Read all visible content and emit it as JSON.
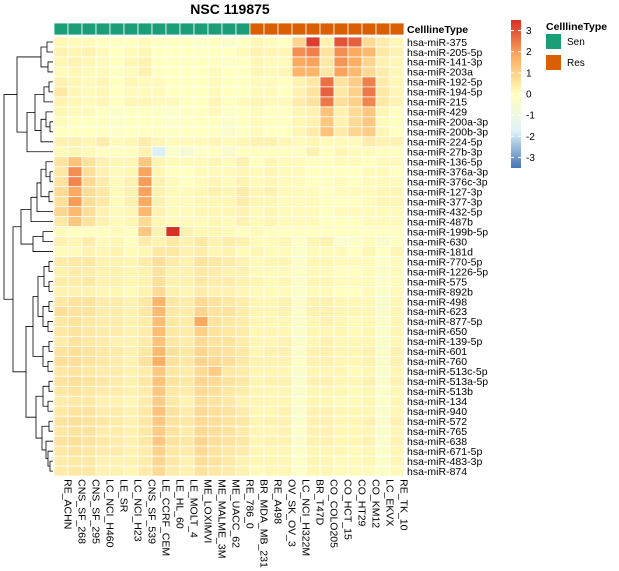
{
  "chart_data": {
    "type": "heatmap",
    "title": "NSC 119875",
    "annotation_label": "CelllineType",
    "annotation_legend": {
      "title": "CelllineType",
      "items": [
        {
          "label": "Sen",
          "color": "#1b9e77"
        },
        {
          "label": "Res",
          "color": "#d95f02"
        }
      ]
    },
    "color_scale": {
      "ticks": [
        3,
        2,
        1,
        0,
        -1,
        -2,
        -3
      ],
      "min": -3.5,
      "max": 3.5,
      "colors": [
        "#4575b4",
        "#e0f3f8",
        "#ffffbf",
        "#fdae61",
        "#d73027"
      ]
    },
    "columns": [
      {
        "label": "RE_ACHN",
        "group": "Sen"
      },
      {
        "label": "CNS_SF_268",
        "group": "Sen"
      },
      {
        "label": "CNS_SF_295",
        "group": "Sen"
      },
      {
        "label": "LC_NCI_H460",
        "group": "Sen"
      },
      {
        "label": "LE_SR",
        "group": "Sen"
      },
      {
        "label": "LC_NCI_H23",
        "group": "Sen"
      },
      {
        "label": "CNS_SF_539",
        "group": "Sen"
      },
      {
        "label": "LE_CCRF_CEM",
        "group": "Sen"
      },
      {
        "label": "LE_HL_60",
        "group": "Sen"
      },
      {
        "label": "LE_MOLT_4",
        "group": "Sen"
      },
      {
        "label": "ME_LOXIMVI",
        "group": "Sen"
      },
      {
        "label": "ME_MALME_3M",
        "group": "Sen"
      },
      {
        "label": "ME_UACC_62",
        "group": "Sen"
      },
      {
        "label": "RE_786_0",
        "group": "Sen"
      },
      {
        "label": "BR_MDA_MB_231",
        "group": "Res"
      },
      {
        "label": "RE_A498",
        "group": "Res"
      },
      {
        "label": "OV_SK_OV_3",
        "group": "Res"
      },
      {
        "label": "LC_NCI_H322M",
        "group": "Res"
      },
      {
        "label": "BR_T47D",
        "group": "Res"
      },
      {
        "label": "CO_COLO205",
        "group": "Res"
      },
      {
        "label": "CO_HCT_15",
        "group": "Res"
      },
      {
        "label": "CO_HT29",
        "group": "Res"
      },
      {
        "label": "CO_KM12",
        "group": "Res"
      },
      {
        "label": "LC_EKVX",
        "group": "Res"
      },
      {
        "label": "RE_TK_10",
        "group": "Res"
      }
    ],
    "rows": [
      "hsa-miR-375",
      "hsa-miR-205-5p",
      "hsa-miR-141-3p",
      "hsa-miR-203a",
      "hsa-miR-192-5p",
      "hsa-miR-194-5p",
      "hsa-miR-215",
      "hsa-miR-429",
      "hsa-miR-200a-3p",
      "hsa-miR-200b-3p",
      "hsa-miR-224-5p",
      "hsa-miR-27b-3p",
      "hsa-miR-136-5p",
      "hsa-miR-376a-3p",
      "hsa-miR-376c-3p",
      "hsa-miR-127-3p",
      "hsa-miR-377-3p",
      "hsa-miR-432-5p",
      "hsa-miR-487b",
      "hsa-miR-199b-5p",
      "hsa-miR-630",
      "hsa-miR-181d",
      "hsa-miR-770-5p",
      "hsa-miR-1226-5p",
      "hsa-miR-575",
      "hsa-miR-892b",
      "hsa-miR-498",
      "hsa-miR-623",
      "hsa-miR-877-5p",
      "hsa-miR-650",
      "hsa-miR-139-5p",
      "hsa-miR-601",
      "hsa-miR-760",
      "hsa-miR-513c-5p",
      "hsa-miR-513a-5p",
      "hsa-miR-513b",
      "hsa-miR-134",
      "hsa-miR-940",
      "hsa-miR-572",
      "hsa-miR-765",
      "hsa-miR-638",
      "hsa-miR-671-5p",
      "hsa-miR-483-3p",
      "hsa-miR-874"
    ],
    "values": [
      [
        0.2,
        0.1,
        0.1,
        0,
        -0.1,
        0,
        0.1,
        -0.1,
        0,
        0,
        -0.2,
        0,
        -0.3,
        0,
        0.2,
        0.1,
        0,
        0.9,
        3.3,
        0.3,
        3,
        2.8,
        0.8,
        0.4,
        0.2
      ],
      [
        0.3,
        0.2,
        0.3,
        0.1,
        0,
        0.1,
        0.2,
        0,
        0,
        0,
        -0.1,
        0,
        0,
        0.1,
        0.3,
        0.2,
        0.2,
        2.2,
        2.4,
        0.6,
        2.2,
        1.8,
        1.5,
        0.5,
        0.3
      ],
      [
        0.2,
        0.3,
        0.2,
        0.1,
        0,
        0.2,
        0.3,
        0,
        0,
        -0.1,
        0,
        0,
        -0.2,
        0,
        0.2,
        0.1,
        0.1,
        1.8,
        1.9,
        0.5,
        2.1,
        1.7,
        0.9,
        0.3,
        0.2
      ],
      [
        0.1,
        0.2,
        0.1,
        0.1,
        -0.1,
        0.1,
        0.3,
        0,
        0,
        0,
        0,
        0.1,
        0,
        0,
        0.2,
        0.1,
        0.2,
        1.6,
        1.6,
        0.5,
        1.9,
        1.5,
        0.8,
        0.4,
        0.2
      ],
      [
        0.3,
        0.2,
        0.1,
        0.2,
        0,
        0.2,
        0.1,
        0.1,
        0,
        0,
        0,
        0.1,
        0,
        0,
        0.1,
        0.1,
        0,
        0.3,
        0.5,
        2.6,
        0.6,
        1.1,
        2.4,
        0.4,
        0.2
      ],
      [
        0.5,
        0.2,
        0.1,
        0.2,
        0,
        0.1,
        0.1,
        0.1,
        0,
        0,
        0,
        0.1,
        0,
        0,
        0.1,
        0.1,
        0,
        0.3,
        0.6,
        2.8,
        0.5,
        1,
        2.5,
        0.5,
        0.2
      ],
      [
        0.3,
        0.2,
        0.1,
        0.2,
        0,
        0.2,
        0.2,
        0.1,
        0.1,
        0,
        0,
        0.2,
        0,
        0.1,
        0.2,
        0.1,
        0.1,
        0.4,
        0.6,
        2.5,
        0.7,
        1,
        2.3,
        0.5,
        0.3
      ],
      [
        0.2,
        0.1,
        0.1,
        0,
        -0.2,
        0,
        0,
        -0.1,
        -0.2,
        -0.1,
        0,
        0.1,
        -0.2,
        0,
        0.1,
        0,
        -0.1,
        0.2,
        0.3,
        1.3,
        0.3,
        0.8,
        1.2,
        0.2,
        0
      ],
      [
        0.1,
        0,
        0,
        0,
        -0.2,
        0,
        0,
        -0.1,
        -0.2,
        -0.1,
        0,
        0,
        -0.3,
        0,
        0.1,
        0,
        -0.1,
        0.2,
        0.3,
        1.2,
        0.3,
        0.8,
        1.2,
        0.1,
        0
      ],
      [
        0,
        0,
        0,
        0,
        -0.2,
        0,
        0,
        -0.1,
        -0.1,
        0,
        0,
        0,
        -0.3,
        -0.1,
        0.1,
        0,
        0,
        0.2,
        0.4,
        1.3,
        0.4,
        0.9,
        1.1,
        0.2,
        0
      ],
      [
        0.3,
        0.3,
        0.2,
        0.4,
        0.1,
        0.2,
        0.4,
        0.2,
        0.1,
        0.1,
        0.1,
        0.2,
        0.1,
        0.2,
        0.3,
        0.3,
        0.2,
        0.1,
        0.2,
        0.1,
        0.1,
        0.1,
        0.4,
        0.3,
        0.3
      ],
      [
        0.1,
        0.2,
        0.1,
        0,
        -0.1,
        0,
        0.3,
        -1.8,
        -0.3,
        -0.6,
        -0.2,
        0,
        -0.4,
        0,
        0,
        0,
        0,
        -0.1,
        0.3,
        0,
        0.2,
        0.1,
        0.1,
        0,
        0
      ],
      [
        0.6,
        1.3,
        0.6,
        0.3,
        0.2,
        0.2,
        1.2,
        0.2,
        0.1,
        0.1,
        0.1,
        0.2,
        0.1,
        0.3,
        0,
        0.2,
        0.1,
        0.1,
        0,
        0,
        0.1,
        0.1,
        0,
        0.1,
        0.1
      ],
      [
        0.5,
        2.2,
        0.7,
        0.3,
        0.1,
        0.2,
        1.9,
        0.2,
        0,
        0,
        0.1,
        0.1,
        0.1,
        0.2,
        0.1,
        0.2,
        0.1,
        0.1,
        0,
        0,
        0,
        0,
        0.1,
        0.1,
        0
      ],
      [
        0.6,
        2.3,
        0.8,
        0.4,
        0.1,
        0.3,
        2,
        0.3,
        0.1,
        0,
        0.1,
        0.2,
        0.1,
        0.3,
        0.1,
        0.2,
        0.1,
        0.1,
        0,
        0,
        0.1,
        0,
        0.1,
        0.1,
        0.1
      ],
      [
        0.8,
        1.8,
        0.7,
        0.5,
        0.1,
        0.3,
        1.9,
        0.3,
        0.1,
        0.1,
        0.2,
        0.3,
        0.2,
        0.4,
        0.2,
        0.3,
        0.1,
        0.1,
        0.1,
        0,
        0.1,
        0.1,
        0.1,
        0.2,
        0.2
      ],
      [
        0.7,
        2,
        0.7,
        0.5,
        0.1,
        0.3,
        1.8,
        0.3,
        0.1,
        0.1,
        0.2,
        0.2,
        0.2,
        0.4,
        0.2,
        0.2,
        0.1,
        0.1,
        0.1,
        0,
        0,
        0,
        0.1,
        0.2,
        0.2
      ],
      [
        0.9,
        1.5,
        0.7,
        0.3,
        0.1,
        0.2,
        1.5,
        0.3,
        0.1,
        0.1,
        0.2,
        0.2,
        0.2,
        0.3,
        0.1,
        0.2,
        0.1,
        0.1,
        0.1,
        0,
        0.1,
        0.1,
        0.1,
        0.1,
        0.1
      ],
      [
        0.5,
        1.2,
        0.6,
        0.3,
        0.1,
        0.2,
        0.8,
        0.2,
        0.1,
        0.1,
        0.1,
        0.2,
        0.1,
        0.3,
        0.1,
        0.2,
        0.1,
        0.1,
        0.1,
        0,
        0,
        0,
        0.1,
        0.1,
        0.1
      ],
      [
        0.1,
        0,
        0,
        0,
        0.1,
        0,
        1.2,
        0.3,
        3.5,
        0.3,
        0.2,
        0.2,
        0.1,
        0,
        0.1,
        0,
        0,
        0,
        0,
        0,
        0,
        0,
        0,
        0,
        0
      ],
      [
        0.3,
        0.2,
        0.4,
        0.1,
        0.2,
        0,
        0.4,
        0.3,
        0.5,
        0.3,
        0.5,
        0.3,
        0.4,
        0.3,
        0.1,
        0.1,
        0.2,
        -0.2,
        0.2,
        0.3,
        -0.3,
        -0.2,
        0.1,
        -0.4,
        0
      ],
      [
        0.1,
        0.1,
        0.3,
        0.2,
        0.3,
        0.1,
        0.2,
        0.5,
        0.5,
        0.3,
        0.4,
        0.2,
        0.3,
        0.1,
        0.2,
        0.1,
        0.1,
        -0.2,
        0.1,
        0.1,
        0.1,
        0,
        0.2,
        0,
        0.2
      ],
      [
        0.4,
        0.5,
        0.5,
        0.3,
        0.3,
        0.2,
        0.4,
        0.7,
        0.4,
        0.3,
        0.6,
        0.5,
        0.4,
        0.3,
        0.1,
        0.2,
        0.2,
        -0.3,
        0.2,
        0.2,
        0.1,
        0.1,
        0.1,
        -0.2,
        0.1
      ],
      [
        0.3,
        0.4,
        0.4,
        0.3,
        0.3,
        0.2,
        0.3,
        0.6,
        0.3,
        0.3,
        0.5,
        0.4,
        0.3,
        0.3,
        0.1,
        0.1,
        0.1,
        -0.2,
        0.1,
        0.1,
        0,
        0,
        0.1,
        -0.3,
        0.1
      ],
      [
        0.4,
        0.4,
        0.5,
        0.3,
        0.3,
        0.2,
        0.3,
        0.7,
        0.3,
        0.3,
        0.5,
        0.4,
        0.4,
        0.3,
        0.2,
        0.1,
        0.2,
        -0.3,
        0.2,
        0.2,
        0.1,
        0.1,
        0.1,
        -0.3,
        0.1
      ],
      [
        0.3,
        0.3,
        0.3,
        0.2,
        0.2,
        0.1,
        0.3,
        0.8,
        0.3,
        0.2,
        0.4,
        0.3,
        0.3,
        0.2,
        0.1,
        0.1,
        0.1,
        -0.2,
        0.1,
        0.1,
        0,
        0,
        0.1,
        -0.2,
        0.1
      ],
      [
        0.5,
        0.6,
        0.6,
        0.4,
        0.4,
        0.3,
        0.5,
        1.6,
        0.5,
        0.4,
        0.8,
        0.6,
        0.5,
        0.4,
        0.2,
        0.2,
        0.3,
        -0.3,
        0.3,
        0.3,
        0.2,
        0.2,
        0.2,
        -0.4,
        0.2
      ],
      [
        0.7,
        0.6,
        0.6,
        0.4,
        0.4,
        0.3,
        0.5,
        1.5,
        0.5,
        0.4,
        0.9,
        0.6,
        0.6,
        0.4,
        0.2,
        0.2,
        0.3,
        -0.3,
        0.3,
        0.3,
        0.2,
        0.2,
        0.2,
        -0.4,
        0.2
      ],
      [
        0.5,
        0.6,
        0.5,
        0.4,
        0.4,
        0.3,
        0.4,
        1.4,
        0.5,
        0.4,
        1.8,
        0.6,
        0.5,
        0.4,
        0.2,
        0.2,
        0.2,
        -0.3,
        0.2,
        0.3,
        0.2,
        0.1,
        0.2,
        -0.3,
        0.2
      ],
      [
        0.5,
        0.6,
        0.5,
        0.4,
        0.4,
        0.3,
        0.4,
        1.4,
        0.5,
        0.4,
        1,
        0.6,
        0.5,
        0.4,
        0.2,
        0.2,
        0.2,
        -0.3,
        0.2,
        0.2,
        0.2,
        0.1,
        0.2,
        -0.3,
        0.2
      ],
      [
        0.4,
        0.6,
        0.5,
        0.4,
        0.3,
        0.3,
        0.4,
        1.3,
        0.5,
        0.4,
        0.8,
        0.6,
        0.6,
        0.4,
        0.2,
        0.2,
        0.3,
        -0.3,
        0.2,
        0.3,
        0.2,
        0.2,
        0.2,
        -0.3,
        0.2
      ],
      [
        0.6,
        0.7,
        0.6,
        0.5,
        0.4,
        0.3,
        0.5,
        1.5,
        0.6,
        0.5,
        0.9,
        0.7,
        0.6,
        0.5,
        0.2,
        0.3,
        0.3,
        -0.3,
        0.3,
        0.3,
        0.2,
        0.2,
        0.3,
        -0.3,
        0.3
      ],
      [
        0.7,
        0.7,
        0.6,
        0.5,
        0.4,
        0.3,
        0.6,
        1.7,
        0.6,
        0.5,
        0.9,
        0.8,
        0.7,
        0.5,
        0.3,
        0.3,
        0.3,
        -0.2,
        0.3,
        0.3,
        0.2,
        0.2,
        0.3,
        -0.3,
        0.3
      ],
      [
        0.5,
        0.6,
        0.5,
        0.4,
        0.4,
        0.3,
        0.4,
        1.2,
        0.5,
        0.4,
        0.8,
        1.1,
        0.5,
        0.4,
        0.2,
        0.2,
        0.2,
        -0.3,
        0.2,
        0.2,
        0.2,
        0.1,
        0.2,
        -0.3,
        0.2
      ],
      [
        0.6,
        0.7,
        0.6,
        0.5,
        0.4,
        0.3,
        0.5,
        1.3,
        0.6,
        0.5,
        0.9,
        0.8,
        0.6,
        0.5,
        0.2,
        0.3,
        0.3,
        -0.3,
        0.3,
        0.3,
        0.2,
        0.2,
        0.3,
        -0.3,
        0.3
      ],
      [
        0.5,
        0.6,
        0.5,
        0.4,
        0.4,
        0.3,
        0.4,
        1.2,
        0.5,
        0.4,
        0.8,
        0.7,
        0.5,
        0.4,
        0.2,
        0.2,
        0.2,
        -0.3,
        0.2,
        0.2,
        0.2,
        0.1,
        0.2,
        -0.3,
        0.2
      ],
      [
        0.4,
        0.5,
        0.5,
        0.3,
        0.3,
        0.2,
        0.4,
        1.1,
        0.5,
        0.3,
        0.7,
        0.6,
        0.5,
        0.3,
        0.2,
        0.2,
        0.2,
        -0.2,
        0.2,
        0.2,
        0.1,
        0.1,
        0.2,
        -0.2,
        0.2
      ],
      [
        0.5,
        0.6,
        0.6,
        0.4,
        0.4,
        0.3,
        0.5,
        1.3,
        0.6,
        0.4,
        0.8,
        0.7,
        0.6,
        0.4,
        0.2,
        0.2,
        0.3,
        -0.3,
        0.3,
        0.3,
        0.2,
        0.2,
        0.2,
        -0.3,
        0.2
      ],
      [
        0.6,
        0.7,
        0.6,
        0.5,
        0.4,
        0.3,
        0.5,
        1.2,
        0.6,
        0.5,
        0.8,
        0.7,
        0.6,
        0.5,
        0.2,
        0.3,
        0.3,
        -0.3,
        0.3,
        0.3,
        0.2,
        0.2,
        0.3,
        -0.3,
        0.3
      ],
      [
        0.5,
        0.6,
        0.6,
        0.4,
        0.4,
        0.3,
        0.5,
        1.1,
        0.6,
        0.4,
        0.8,
        0.7,
        0.6,
        0.4,
        0.2,
        0.2,
        0.3,
        -0.2,
        0.3,
        0.3,
        0.2,
        0.2,
        0.2,
        -0.3,
        0.2
      ],
      [
        0.6,
        0.7,
        0.6,
        0.5,
        0.4,
        0.3,
        0.5,
        1.2,
        0.6,
        0.5,
        0.9,
        0.7,
        0.6,
        0.5,
        0.2,
        0.3,
        0.3,
        -0.3,
        0.3,
        0.3,
        0.2,
        0.2,
        0.3,
        -0.3,
        0.3
      ],
      [
        0.5,
        0.6,
        0.5,
        0.4,
        0.4,
        0.3,
        0.4,
        1,
        0.5,
        0.4,
        0.8,
        0.6,
        0.5,
        0.4,
        0.2,
        0.2,
        0.2,
        -0.2,
        0.2,
        0.2,
        0.2,
        0.1,
        0.2,
        -0.2,
        0.2
      ],
      [
        0.4,
        0.5,
        0.5,
        0.3,
        0.3,
        0.3,
        0.4,
        0.9,
        0.5,
        0.3,
        0.7,
        0.6,
        0.5,
        0.3,
        0.2,
        0.2,
        0.2,
        -0.2,
        0.2,
        0.2,
        0.1,
        0.1,
        0.2,
        -0.2,
        0.2
      ],
      [
        0.4,
        0.5,
        0.5,
        0.3,
        0.3,
        0.2,
        0.4,
        0.8,
        0.4,
        0.3,
        0.6,
        0.5,
        0.4,
        0.3,
        0.1,
        0.2,
        0.2,
        -0.2,
        0.2,
        0.2,
        0.1,
        0.1,
        0.1,
        -0.2,
        0.1
      ]
    ]
  }
}
